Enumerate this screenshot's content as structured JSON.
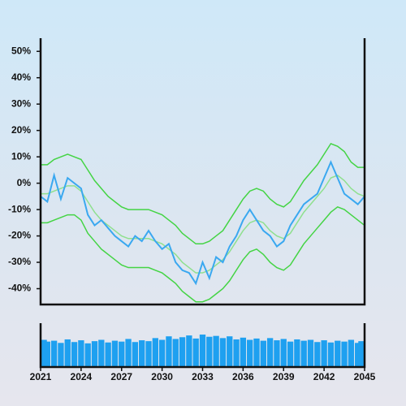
{
  "chart_data": [
    {
      "type": "line",
      "x": [
        2021,
        2021.5,
        2022,
        2022.5,
        2023,
        2023.5,
        2024,
        2024.5,
        2025,
        2025.5,
        2026,
        2026.5,
        2027,
        2027.5,
        2028,
        2028.5,
        2029,
        2029.5,
        2030,
        2030.5,
        2031,
        2031.5,
        2032,
        2032.5,
        2033,
        2033.5,
        2034,
        2034.5,
        2035,
        2035.5,
        2036,
        2036.5,
        2037,
        2037.5,
        2038,
        2038.5,
        2039,
        2039.5,
        2040,
        2040.5,
        2041,
        2041.5,
        2042,
        2042.5,
        2043,
        2043.5,
        2044,
        2044.5,
        2045
      ],
      "xlim": [
        2021,
        2045
      ],
      "ylim": [
        -46,
        55
      ],
      "yticks": [
        {
          "value": -40,
          "label": "-40%"
        },
        {
          "value": -30,
          "label": "-30%"
        },
        {
          "value": -20,
          "label": "-20%"
        },
        {
          "value": -10,
          "label": "-10%"
        },
        {
          "value": 0,
          "label": "0%"
        },
        {
          "value": 10,
          "label": "10%"
        },
        {
          "value": 20,
          "label": "20%"
        },
        {
          "value": 30,
          "label": "30%"
        },
        {
          "value": 40,
          "label": "40%"
        },
        {
          "value": 50,
          "label": "50%"
        }
      ],
      "series": [
        {
          "color": "#44d444",
          "values": [
            7,
            7,
            9,
            10,
            11,
            10,
            9,
            5,
            1,
            -2,
            -5,
            -7,
            -9,
            -10,
            -10,
            -10,
            -10,
            -11,
            -12,
            -14,
            -16,
            -19,
            -21,
            -23,
            -23,
            -22,
            -20,
            -18,
            -14,
            -10,
            -6,
            -3,
            -2,
            -3,
            -6,
            -8,
            -9,
            -7,
            -3,
            1,
            4,
            7,
            11,
            15,
            14,
            12,
            8,
            6,
            6
          ]
        },
        {
          "color": "#44d444",
          "values": [
            -15,
            -15,
            -14,
            -13,
            -12,
            -12,
            -14,
            -19,
            -22,
            -25,
            -27,
            -29,
            -31,
            -32,
            -32,
            -32,
            -32,
            -33,
            -34,
            -36,
            -38,
            -41,
            -43,
            -45,
            -45,
            -44,
            -42,
            -40,
            -37,
            -33,
            -29,
            -26,
            -25,
            -27,
            -30,
            -32,
            -33,
            -31,
            -27,
            -23,
            -20,
            -17,
            -14,
            -11,
            -9,
            -10,
            -12,
            -14,
            -16
          ]
        },
        {
          "color": "#8fe08f",
          "values": [
            -4,
            -4,
            -3,
            -2,
            -1,
            -1,
            -3,
            -7,
            -11,
            -14,
            -16,
            -18,
            -20,
            -21,
            -21,
            -21,
            -21,
            -22,
            -23,
            -25,
            -27,
            -30,
            -32,
            -34,
            -34,
            -33,
            -31,
            -29,
            -26,
            -22,
            -18,
            -15,
            -14,
            -15,
            -18,
            -20,
            -21,
            -19,
            -15,
            -11,
            -8,
            -5,
            -2,
            2,
            3,
            1,
            -2,
            -4,
            -5
          ]
        },
        {
          "color": "#3aa8f0",
          "values": [
            -5,
            -7,
            3,
            -6,
            2,
            0,
            -2,
            -12,
            -16,
            -14,
            -17,
            -20,
            -22,
            -24,
            -20,
            -22,
            -18,
            -22,
            -25,
            -23,
            -30,
            -33,
            -34,
            -38,
            -30,
            -36,
            -28,
            -30,
            -24,
            -20,
            -14,
            -10,
            -14,
            -18,
            -20,
            -24,
            -22,
            -16,
            -12,
            -8,
            -6,
            -4,
            2,
            8,
            2,
            -4,
            -6,
            -8,
            -5
          ]
        }
      ]
    },
    {
      "type": "bar",
      "x": [
        2021,
        2021.5,
        2022,
        2022.5,
        2023,
        2023.5,
        2024,
        2024.5,
        2025,
        2025.5,
        2026,
        2026.5,
        2027,
        2027.5,
        2028,
        2028.5,
        2029,
        2029.5,
        2030,
        2030.5,
        2031,
        2031.5,
        2032,
        2032.5,
        2033,
        2033.5,
        2034,
        2034.5,
        2035,
        2035.5,
        2036,
        2036.5,
        2037,
        2037.5,
        2038,
        2038.5,
        2039,
        2039.5,
        2040,
        2040.5,
        2041,
        2041.5,
        2042,
        2042.5,
        2043,
        2043.5,
        2044,
        2044.5,
        2045
      ],
      "values": [
        62,
        58,
        60,
        55,
        63,
        57,
        61,
        54,
        59,
        62,
        56,
        60,
        58,
        64,
        57,
        61,
        59,
        66,
        62,
        70,
        64,
        68,
        72,
        65,
        74,
        69,
        71,
        66,
        70,
        63,
        67,
        62,
        65,
        60,
        66,
        61,
        64,
        58,
        63,
        60,
        62,
        57,
        61,
        56,
        60,
        58,
        62,
        55,
        59
      ],
      "color": "#1ea0f0",
      "xlim": [
        2021,
        2045
      ],
      "ylim": [
        0,
        100
      ],
      "xticks": [
        2021,
        2024,
        2027,
        2030,
        2033,
        2036,
        2039,
        2042,
        2045
      ]
    }
  ]
}
